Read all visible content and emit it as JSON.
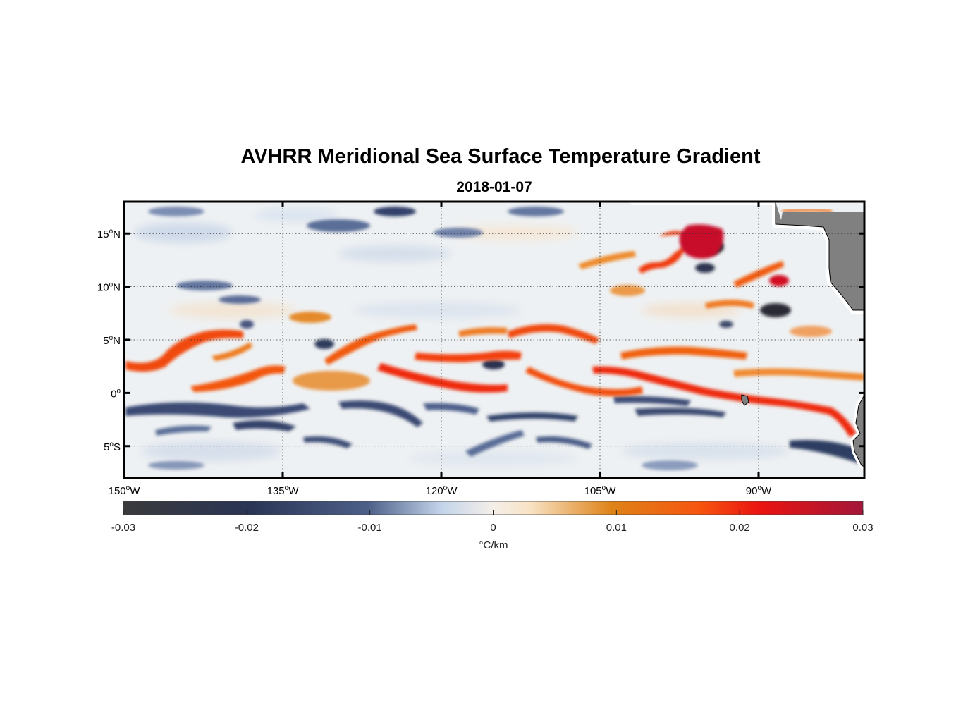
{
  "title": "AVHRR Meridional Sea Surface Temperature Gradient",
  "subtitle": "2018-01-07",
  "map": {
    "lon_range": [
      -150,
      -80
    ],
    "lat_range": [
      -8,
      18
    ],
    "lon_ticks": [
      {
        "value": -150,
        "num": "150",
        "sup": "o",
        "hemi": "W"
      },
      {
        "value": -135,
        "num": "135",
        "sup": "o",
        "hemi": "W"
      },
      {
        "value": -120,
        "num": "120",
        "sup": "o",
        "hemi": "W"
      },
      {
        "value": -105,
        "num": "105",
        "sup": "o",
        "hemi": "W"
      },
      {
        "value": -90,
        "num": "90",
        "sup": "o",
        "hemi": "W"
      }
    ],
    "lat_ticks": [
      {
        "value": 15,
        "num": "15",
        "sup": "o",
        "hemi": "N"
      },
      {
        "value": 10,
        "num": "10",
        "sup": "o",
        "hemi": "N"
      },
      {
        "value": 5,
        "num": "5",
        "sup": "o",
        "hemi": "N"
      },
      {
        "value": 0,
        "num": "0",
        "sup": "o",
        "hemi": ""
      },
      {
        "value": -5,
        "num": "5",
        "sup": "o",
        "hemi": "S"
      }
    ],
    "land_color": "#808080",
    "grid": "dotted"
  },
  "colorbar": {
    "min": -0.03,
    "max": 0.03,
    "ticks": [
      "-0.03",
      "-0.02",
      "-0.01",
      "0",
      "0.01",
      "0.02",
      "0.03"
    ],
    "unit": "°C/km",
    "colors": [
      "#3a3a3c",
      "#2a3555",
      "#4d5f88",
      "#c3d4ea",
      "#f4efe8",
      "#f8e2c4",
      "#de8318",
      "#f7540f",
      "#ea1410",
      "#a3163a"
    ]
  }
}
